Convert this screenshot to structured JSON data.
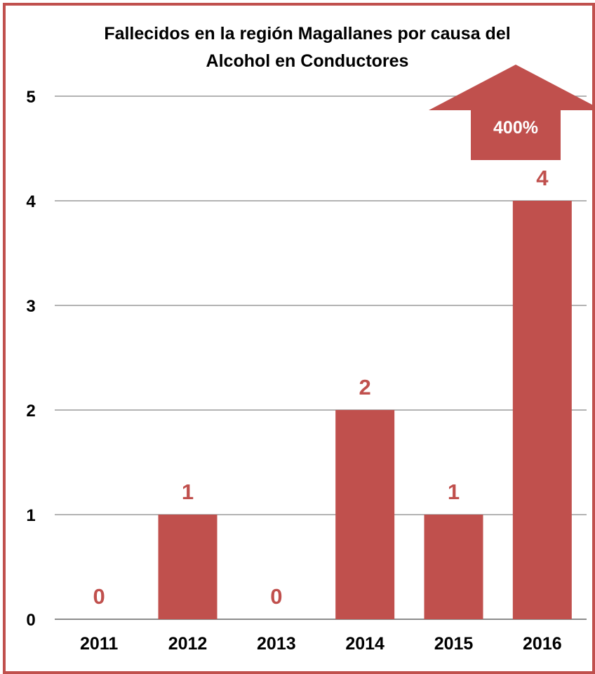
{
  "chart_data": {
    "type": "bar",
    "title_lines": [
      "Fallecidos en la región Magallanes por causa del",
      "Alcohol en Conductores"
    ],
    "categories": [
      "2011",
      "2012",
      "2013",
      "2014",
      "2015",
      "2016"
    ],
    "values": [
      0,
      1,
      0,
      2,
      1,
      4
    ],
    "data_labels": [
      "0",
      "1",
      "0",
      "2",
      "1",
      "4"
    ],
    "ylim": [
      0,
      5
    ],
    "yticks": [
      "0",
      "1",
      "2",
      "3",
      "4",
      "5"
    ],
    "grid": true,
    "legend": "none",
    "bar_color": "#c0504d",
    "label_color": "#c0504d",
    "annotation": {
      "shape": "up-arrow",
      "text": "400%",
      "color": "#c0504d"
    }
  }
}
